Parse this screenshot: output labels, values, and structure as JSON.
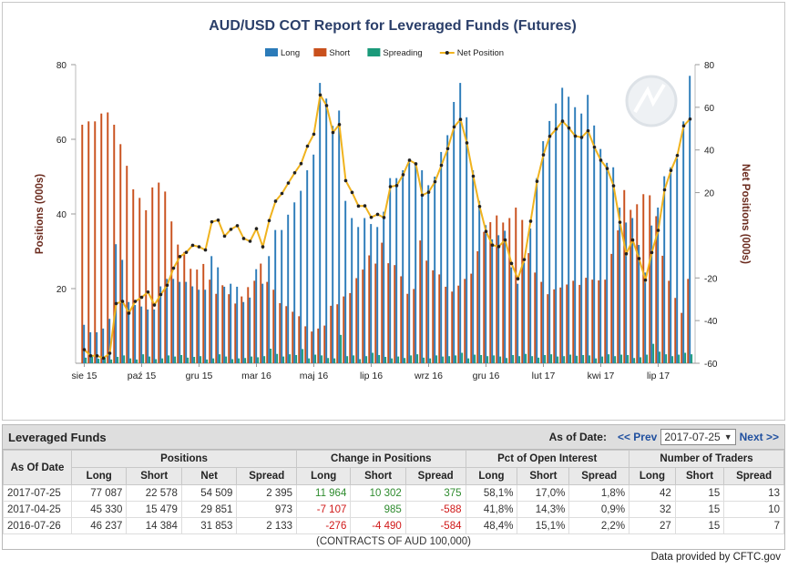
{
  "chart_data": {
    "type": "bar",
    "title": "AUD/USD COT Report for Leveraged Funds (Futures)",
    "ylabel": "Positions (000s)",
    "y2label": "Net Positions (000s)",
    "ylim": [
      0,
      80
    ],
    "y2lim": [
      -60,
      80
    ],
    "yticks": [
      20,
      40,
      60,
      80
    ],
    "y2ticks": [
      -60,
      -40,
      -20,
      20,
      40,
      60,
      80
    ],
    "x_tick_labels": [
      "sie 15",
      "paź 15",
      "gru 15",
      "mar 16",
      "maj 16",
      "lip 16",
      "wrz 16",
      "gru 16",
      "lut 17",
      "kwi 17",
      "lip 17"
    ],
    "x_tick_index": [
      0,
      9,
      18,
      27,
      36,
      45,
      54,
      63,
      72,
      81,
      90
    ],
    "legend": [
      "Long",
      "Short",
      "Spreading",
      "Net Position"
    ],
    "legend_position": "top-center",
    "colors": {
      "long": "#2b7bb9",
      "short": "#c9501c",
      "spreading": "#1a9a7a",
      "net": "#f0b31e"
    },
    "series": [
      {
        "name": "Long",
        "values": [
          10.3,
          8.3,
          8.3,
          9.3,
          11.9,
          31.9,
          27.7,
          16.4,
          15.6,
          15.2,
          14.4,
          14.4,
          20.6,
          22.6,
          22.6,
          21.8,
          21.8,
          20.6,
          19.7,
          19.7,
          28.7,
          25.7,
          20.5,
          21.3,
          20.5,
          16.4,
          17.6,
          25.2,
          21.3,
          28.7,
          35.7,
          35.7,
          39.8,
          43.1,
          46.2,
          51.7,
          55.9,
          75.1,
          70.9,
          63.6,
          67.7,
          43.5,
          38.9,
          36.5,
          38.9,
          37.3,
          36.5,
          40.6,
          49.6,
          49.6,
          51.7,
          53.8,
          53.4,
          51.7,
          47.7,
          50.0,
          56.6,
          61.1,
          70.0,
          75.1,
          65.9,
          51.7,
          43.5,
          37.0,
          33.2,
          34.3,
          35.5,
          25.7,
          21.3,
          27.0,
          36.1,
          49.6,
          59.5,
          64.9,
          69.6,
          73.8,
          71.4,
          68.6,
          66.9,
          71.9,
          63.7,
          57.4,
          53.7,
          52.5,
          41.7,
          37.7,
          38.9,
          31.7,
          24.3,
          36.9,
          41.7,
          50.1,
          52.5,
          54.9,
          64.8,
          77.0
        ]
      },
      {
        "name": "Short",
        "values": [
          63.9,
          64.8,
          64.8,
          66.9,
          67.2,
          63.9,
          58.7,
          52.9,
          46.6,
          44.3,
          41.0,
          47.1,
          48.4,
          46.0,
          38.0,
          31.8,
          29.8,
          25.3,
          25.1,
          26.6,
          22.4,
          18.6,
          20.9,
          18.5,
          16.0,
          17.9,
          20.4,
          22.1,
          26.7,
          21.8,
          19.7,
          16.1,
          15.3,
          13.8,
          12.6,
          9.9,
          8.5,
          9.3,
          10.1,
          15.4,
          15.8,
          17.9,
          18.8,
          22.8,
          25.1,
          28.9,
          26.7,
          32.3,
          26.8,
          26.3,
          23.3,
          18.6,
          19.9,
          32.9,
          27.5,
          24.9,
          23.8,
          20.5,
          19.2,
          20.8,
          22.6,
          24.0,
          30.0,
          35.2,
          37.8,
          39.6,
          37.7,
          38.9,
          41.7,
          38.4,
          29.5,
          24.3,
          21.8,
          18.5,
          19.8,
          20.3,
          21.1,
          22.1,
          21.0,
          22.9,
          22.4,
          22.2,
          22.4,
          29.3,
          35.6,
          46.4,
          41.1,
          42.6,
          45.3,
          45.0,
          39.4,
          28.8,
          22.1,
          17.5,
          13.5,
          22.6
        ]
      },
      {
        "name": "Spreading",
        "values": [
          1.5,
          1.9,
          1.2,
          1.8,
          1.0,
          1.7,
          2.1,
          1.3,
          1.0,
          2.4,
          1.8,
          1.1,
          1.3,
          2.1,
          1.8,
          2.2,
          1.5,
          1.7,
          1.9,
          1.0,
          1.3,
          2.4,
          1.8,
          1.1,
          1.3,
          1.4,
          1.8,
          1.6,
          1.9,
          3.9,
          2.5,
          1.8,
          2.4,
          2.2,
          3.8,
          1.3,
          2.3,
          2.1,
          1.4,
          1.3,
          7.6,
          1.9,
          2.1,
          1.1,
          1.9,
          2.8,
          2.2,
          1.7,
          1.3,
          1.8,
          1.4,
          2.1,
          2.4,
          1.5,
          1.3,
          2.1,
          1.8,
          1.9,
          2.1,
          2.8,
          1.3,
          2.3,
          2.2,
          1.9,
          2.1,
          1.8,
          1.4,
          2.2,
          1.9,
          2.5,
          1.9,
          1.5,
          2.2,
          2.4,
          1.8,
          1.9,
          2.3,
          2.0,
          2.2,
          2.1,
          1.3,
          1.8,
          2.4,
          1.9,
          2.3,
          2.2,
          1.4,
          1.6,
          2.3,
          5.2,
          3.1,
          2.4,
          1.9,
          2.3,
          2.8,
          2.4
        ]
      },
      {
        "name": "Net Position",
        "values": [
          -53.6,
          -56.5,
          -56.5,
          -57.6,
          -55.3,
          -32.0,
          -31.0,
          -36.5,
          -31.0,
          -29.1,
          -26.6,
          -32.7,
          -27.8,
          -23.4,
          -15.4,
          -10.0,
          -8.0,
          -4.7,
          -5.4,
          -6.9,
          6.3,
          7.1,
          -0.4,
          2.8,
          4.5,
          -1.5,
          -2.8,
          3.1,
          -5.4,
          6.9,
          16.0,
          19.6,
          24.5,
          29.3,
          33.6,
          41.8,
          47.4,
          65.8,
          60.8,
          48.2,
          51.9,
          25.6,
          20.1,
          13.7,
          13.8,
          8.4,
          9.8,
          8.3,
          22.8,
          23.3,
          28.4,
          35.2,
          33.5,
          18.8,
          20.2,
          25.1,
          32.8,
          40.6,
          50.8,
          54.3,
          43.3,
          27.7,
          13.5,
          1.8,
          -4.6,
          -5.3,
          -2.2,
          -13.2,
          -20.4,
          -11.4,
          6.6,
          25.3,
          37.7,
          46.4,
          49.8,
          53.5,
          50.3,
          46.5,
          45.9,
          49.0,
          41.3,
          35.2,
          31.3,
          23.2,
          6.1,
          -8.7,
          -2.2,
          -10.9,
          -21.0,
          -8.1,
          2.3,
          21.3,
          30.4,
          37.4,
          51.3,
          54.5
        ]
      }
    ]
  },
  "table": {
    "title": "Leveraged Funds",
    "as_of_label": "As of Date:",
    "prev_label": "<< Prev",
    "next_label": "Next >>",
    "selected_date": "2017-07-25",
    "dropdown_arrow": "▼",
    "group_headers": [
      "As Of Date",
      "Positions",
      "Change in Positions",
      "Pct of Open Interest",
      "Number of Traders"
    ],
    "sub_headers": [
      "Long",
      "Short",
      "Net",
      "Spread",
      "Long",
      "Short",
      "Spread",
      "Long",
      "Short",
      "Spread",
      "Long",
      "Short",
      "Spread"
    ],
    "rows": [
      {
        "date": "2017-07-25",
        "cells": [
          "77 087",
          "22 578",
          "54 509",
          "2 395",
          "11 964",
          "10 302",
          "375",
          "58,1%",
          "17,0%",
          "1,8%",
          "42",
          "15",
          "13"
        ],
        "signs": [
          "",
          "",
          "",
          "",
          "pos",
          "pos",
          "pos",
          "",
          "",
          "",
          "",
          "",
          ""
        ]
      },
      {
        "date": "2017-04-25",
        "cells": [
          "45 330",
          "15 479",
          "29 851",
          "973",
          "-7 107",
          "985",
          "-588",
          "41,8%",
          "14,3%",
          "0,9%",
          "32",
          "15",
          "10"
        ],
        "signs": [
          "",
          "",
          "",
          "",
          "neg",
          "pos",
          "neg",
          "",
          "",
          "",
          "",
          "",
          ""
        ]
      },
      {
        "date": "2016-07-26",
        "cells": [
          "46 237",
          "14 384",
          "31 853",
          "2 133",
          "-276",
          "-4 490",
          "-584",
          "48,4%",
          "15,1%",
          "2,2%",
          "27",
          "15",
          "7"
        ],
        "signs": [
          "",
          "",
          "",
          "",
          "neg",
          "neg",
          "neg",
          "",
          "",
          "",
          "",
          "",
          ""
        ]
      }
    ],
    "units_note": "(CONTRACTS OF AUD 100,000)"
  },
  "footer": {
    "text": "Data provided by CFTC.gov"
  }
}
